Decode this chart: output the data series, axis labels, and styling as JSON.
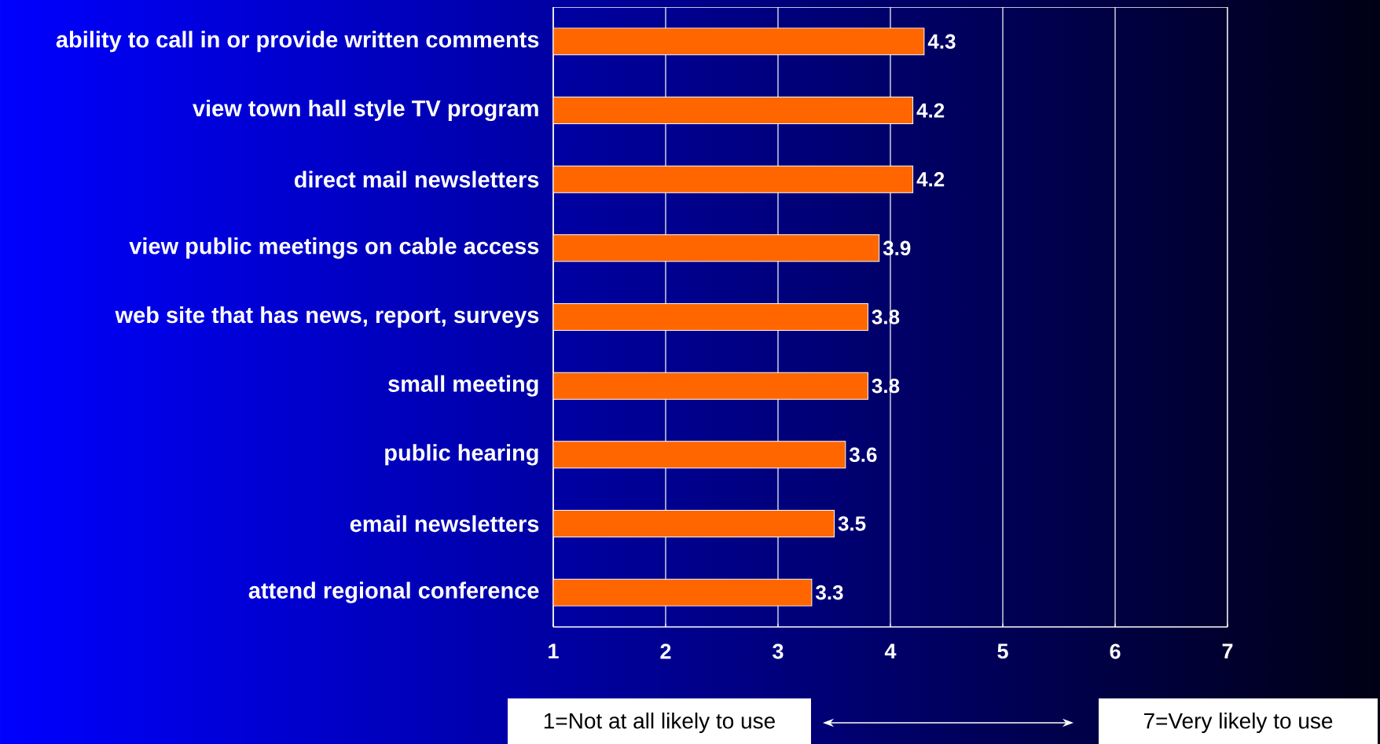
{
  "chart_data": {
    "type": "bar",
    "orientation": "horizontal",
    "categories": [
      "ability to call in or provide written comments",
      "view town hall style TV program",
      "direct mail newsletters",
      "view public meetings on cable access",
      "web site that has news, report, surveys",
      "small meeting",
      "public hearing",
      "email newsletters",
      "attend regional conference"
    ],
    "values": [
      4.3,
      4.2,
      4.2,
      3.9,
      3.8,
      3.8,
      3.6,
      3.5,
      3.3
    ],
    "color": "#ff6600",
    "xlim": [
      1,
      7
    ],
    "xticks": [
      1,
      2,
      3,
      4,
      5,
      6,
      7
    ],
    "grid": "x",
    "data_labels": true,
    "annotations": [
      "1=Not at all likely to use",
      "7=Very likely to use"
    ]
  }
}
